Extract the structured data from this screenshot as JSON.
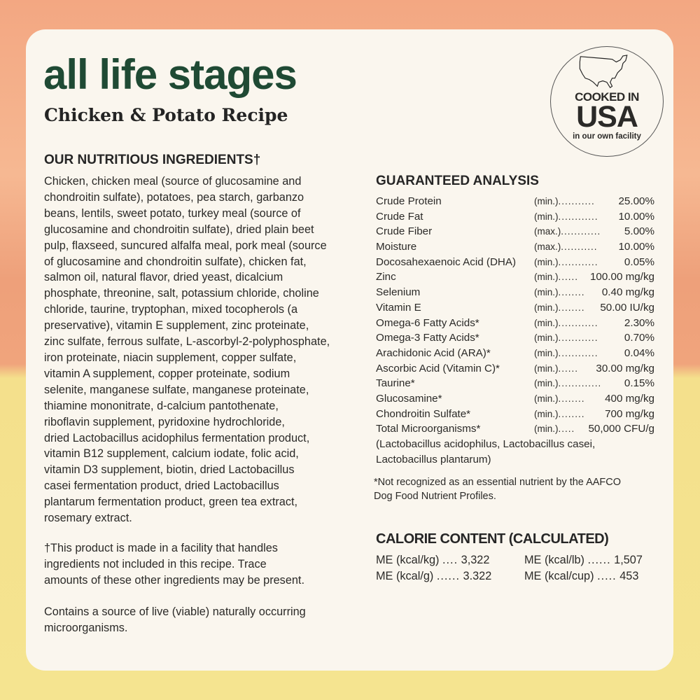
{
  "header": {
    "title": "all life stages",
    "subtitle": "Chicken & Potato Recipe"
  },
  "badge": {
    "icon": "usa-map-icon",
    "line1": "COOKED IN",
    "line2": "USA",
    "line3": "in our own facility"
  },
  "ingredients": {
    "heading": "OUR NUTRITIOUS INGREDIENTS†",
    "lines": [
      "Chicken, chicken meal (source of glucosamine and",
      "chondroitin sulfate), potatoes, pea starch, garbanzo",
      "beans, lentils, sweet potato, turkey meal (source of",
      "glucosamine and chondroitin sulfate), dried plain beet",
      "pulp, flaxseed, suncured alfalfa meal, pork meal (source",
      "of glucosamine and chondroitin sulfate), chicken fat,",
      "salmon oil, natural flavor, dried yeast, dicalcium",
      "phosphate, threonine, salt, potassium chloride, choline",
      "chloride, taurine, tryptophan, mixed tocopherols (a",
      "preservative), vitamin E supplement, zinc proteinate,",
      "zinc sulfate, ferrous sulfate, L-ascorbyl-2-polyphosphate,",
      "iron proteinate, niacin supplement, copper sulfate,",
      "vitamin A supplement, copper proteinate, sodium",
      "selenite, manganese sulfate, manganese proteinate,",
      "thiamine mononitrate, d-calcium pantothenate,",
      "riboflavin supplement, pyridoxine hydrochloride,",
      "dried Lactobacillus acidophilus fermentation product,",
      "vitamin B12 supplement, calcium iodate, folic acid,",
      "vitamin D3 supplement, biotin, dried Lactobacillus",
      "casei fermentation product, dried Lactobacillus",
      "plantarum fermentation product, green tea extract,",
      "rosemary extract."
    ],
    "facility_note": [
      "†This product is made in a facility that handles",
      "ingredients not included in this recipe. Trace",
      "amounts of these other ingredients may be present."
    ],
    "live_note": [
      "Contains a source of live (viable) naturally occurring",
      "microorganisms."
    ]
  },
  "analysis": {
    "heading": "GUARANTEED ANALYSIS",
    "rows": [
      {
        "name": "Crude Protein",
        "qual": "(min.)",
        "dots": "...........",
        "value": "25.00%"
      },
      {
        "name": "Crude Fat",
        "qual": "(min.)",
        "dots": "............",
        "value": "10.00%"
      },
      {
        "name": "Crude Fiber",
        "qual": "(max.)",
        "dots": "............",
        "value": "5.00%"
      },
      {
        "name": "Moisture",
        "qual": "(max.)",
        "dots": "...........",
        "value": "10.00%"
      },
      {
        "name": "Docosahexaenoic Acid (DHA)",
        "qual": "(min.)",
        "dots": "............",
        "value": "0.05%"
      },
      {
        "name": "Zinc",
        "qual": "(min.)",
        "dots": "......",
        "value": "100.00 mg/kg"
      },
      {
        "name": "Selenium",
        "qual": "(min.)",
        "dots": "........",
        "value": "0.40 mg/kg"
      },
      {
        "name": "Vitamin E",
        "qual": "(min.)",
        "dots": "........",
        "value": "50.00 IU/kg"
      },
      {
        "name": "Omega-6 Fatty Acids*",
        "qual": "(min.)",
        "dots": "............",
        "value": "2.30%"
      },
      {
        "name": "Omega-3 Fatty Acids*",
        "qual": "(min.)",
        "dots": "............",
        "value": "0.70%"
      },
      {
        "name": "Arachidonic Acid (ARA)*",
        "qual": "(min.)",
        "dots": "............",
        "value": "0.04%"
      },
      {
        "name": "Ascorbic Acid (Vitamin C)*",
        "qual": "(min.)",
        "dots": "......",
        "value": "30.00 mg/kg"
      },
      {
        "name": "Taurine*",
        "qual": "(min.)",
        "dots": ".............",
        "value": "0.15%"
      },
      {
        "name": "Glucosamine*",
        "qual": "(min.)",
        "dots": "........",
        "value": "400 mg/kg"
      },
      {
        "name": "Chondroitin Sulfate*",
        "qual": "(min.)",
        "dots": "........",
        "value": "700 mg/kg"
      },
      {
        "name": "Total Microorganisms*",
        "qual": "(min.)",
        "dots": ".....",
        "value": "50,000 CFU/g"
      }
    ],
    "lactobacillus": [
      "(Lactobacillus acidophilus, Lactobacillus casei,",
      "Lactobacillus plantarum)"
    ],
    "footnote": [
      "*Not recognized as an essential nutrient by the AAFCO",
      "Dog Food Nutrient Profiles."
    ]
  },
  "calories": {
    "heading": "CALORIE CONTENT (CALCULATED)",
    "items": [
      {
        "label": "ME (kcal/kg)",
        "dots": "....",
        "value": "3,322"
      },
      {
        "label": "ME (kcal/lb)",
        "dots": "......",
        "value": "1,507"
      },
      {
        "label": "ME (kcal/g)",
        "dots": "......",
        "value": "3.322"
      },
      {
        "label": "ME (kcal/cup)",
        "dots": ".....",
        "value": "453"
      }
    ]
  },
  "colors": {
    "title_green": "#1f4a34",
    "card": "#faf6ee",
    "top_orange": "#f3a782",
    "bottom_yellow": "#f5e490"
  }
}
